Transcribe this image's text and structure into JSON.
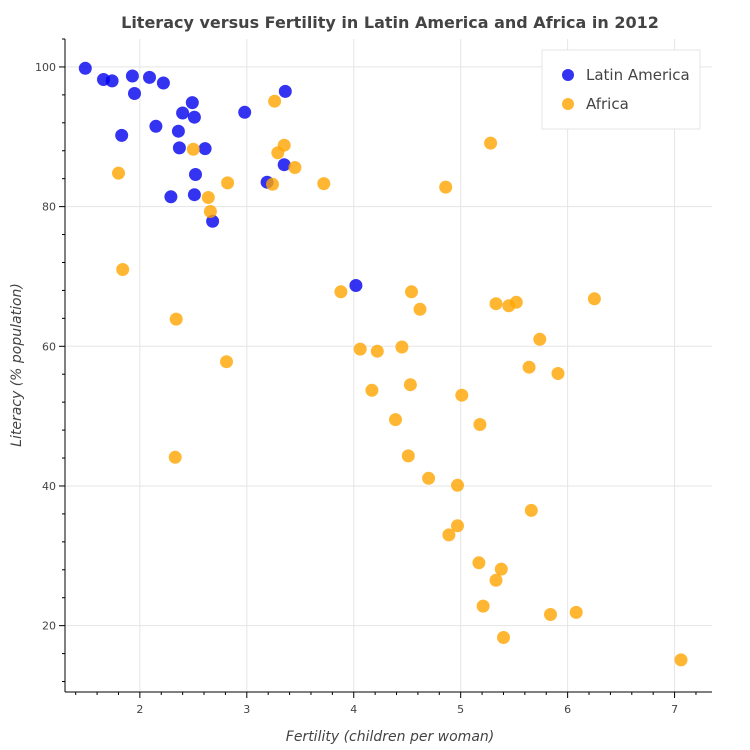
{
  "chart_data": {
    "type": "scatter",
    "title": "Literacy versus Fertility in Latin America and Africa in 2012",
    "xlabel": "Fertility (children per woman)",
    "ylabel": "Literacy (% population)",
    "xlim": [
      1.3,
      7.35
    ],
    "ylim": [
      10.5,
      104
    ],
    "xticks": [
      2,
      3,
      4,
      5,
      6,
      7
    ],
    "yticks": [
      20,
      40,
      60,
      80,
      100
    ],
    "grid": true,
    "legend_position": "top-right",
    "series": [
      {
        "name": "Latin America",
        "color": "#0000ee",
        "points": [
          [
            1.49,
            99.8
          ],
          [
            1.66,
            98.2
          ],
          [
            1.74,
            98.0
          ],
          [
            1.93,
            98.7
          ],
          [
            2.09,
            98.5
          ],
          [
            2.22,
            97.7
          ],
          [
            1.95,
            96.2
          ],
          [
            3.36,
            96.5
          ],
          [
            2.49,
            94.9
          ],
          [
            2.4,
            93.4
          ],
          [
            2.51,
            92.8
          ],
          [
            2.98,
            93.5
          ],
          [
            2.15,
            91.5
          ],
          [
            1.83,
            90.2
          ],
          [
            2.36,
            90.8
          ],
          [
            2.37,
            88.4
          ],
          [
            2.61,
            88.3
          ],
          [
            3.35,
            86.0
          ],
          [
            2.52,
            84.6
          ],
          [
            3.19,
            83.5
          ],
          [
            2.29,
            81.4
          ],
          [
            2.51,
            81.7
          ],
          [
            2.68,
            77.9
          ],
          [
            4.02,
            68.7
          ]
        ]
      },
      {
        "name": "Africa",
        "color": "#ffa500",
        "points": [
          [
            3.26,
            95.1
          ],
          [
            5.28,
            89.1
          ],
          [
            2.5,
            88.2
          ],
          [
            3.35,
            88.8
          ],
          [
            3.29,
            87.7
          ],
          [
            3.45,
            85.6
          ],
          [
            1.8,
            84.8
          ],
          [
            2.82,
            83.4
          ],
          [
            3.24,
            83.2
          ],
          [
            3.72,
            83.3
          ],
          [
            4.86,
            82.8
          ],
          [
            2.64,
            81.3
          ],
          [
            2.66,
            79.3
          ],
          [
            1.84,
            71.0
          ],
          [
            3.88,
            67.8
          ],
          [
            4.54,
            67.8
          ],
          [
            6.25,
            66.8
          ],
          [
            5.33,
            66.1
          ],
          [
            5.52,
            66.3
          ],
          [
            5.45,
            65.8
          ],
          [
            4.62,
            65.3
          ],
          [
            2.34,
            63.9
          ],
          [
            5.74,
            61.0
          ],
          [
            4.06,
            59.6
          ],
          [
            4.45,
            59.9
          ],
          [
            4.22,
            59.3
          ],
          [
            2.81,
            57.8
          ],
          [
            5.64,
            57.0
          ],
          [
            5.91,
            56.1
          ],
          [
            4.53,
            54.5
          ],
          [
            4.17,
            53.7
          ],
          [
            5.01,
            53.0
          ],
          [
            4.39,
            49.5
          ],
          [
            5.18,
            48.8
          ],
          [
            4.51,
            44.3
          ],
          [
            2.33,
            44.1
          ],
          [
            4.7,
            41.1
          ],
          [
            4.97,
            40.1
          ],
          [
            5.66,
            36.5
          ],
          [
            4.97,
            34.3
          ],
          [
            4.89,
            33.0
          ],
          [
            5.17,
            29.0
          ],
          [
            5.38,
            28.1
          ],
          [
            5.33,
            26.5
          ],
          [
            5.21,
            22.8
          ],
          [
            5.84,
            21.6
          ],
          [
            6.08,
            21.9
          ],
          [
            5.4,
            18.3
          ],
          [
            7.06,
            15.1
          ]
        ]
      }
    ]
  }
}
